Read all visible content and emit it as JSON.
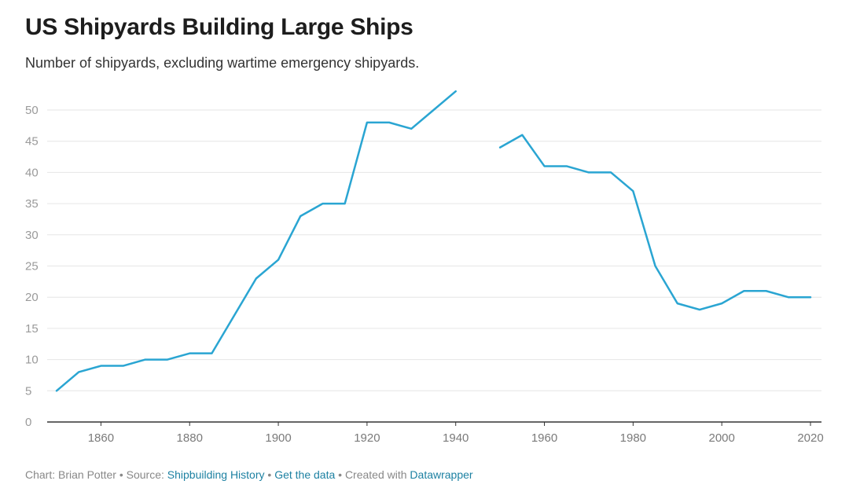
{
  "title": "US Shipyards Building Large Ships",
  "subtitle": "Number of shipyards, excluding wartime emergency shipyards.",
  "footer": {
    "chart_by": "Chart: Brian Potter",
    "source_prefix": "Source:",
    "source_link": "Shipbuilding History",
    "separator": "•",
    "get_data": "Get the data",
    "created_with": "Created with",
    "datawrapper": "Datawrapper"
  },
  "colors": {
    "line": "#2aa5d2",
    "grid": "#e6e6e6",
    "axis": "#333333",
    "tick_text": "#9a9a9a",
    "link": "#1d81a2"
  },
  "chart_data": {
    "type": "line",
    "title": "US Shipyards Building Large Ships",
    "subtitle": "Number of shipyards, excluding wartime emergency shipyards.",
    "xlabel": "",
    "ylabel": "",
    "xlim": [
      1848,
      2022
    ],
    "ylim": [
      0,
      53
    ],
    "grid": true,
    "x_ticks": [
      1860,
      1880,
      1900,
      1920,
      1940,
      1960,
      1980,
      2000,
      2020
    ],
    "y_ticks": [
      0,
      5,
      10,
      15,
      20,
      25,
      30,
      35,
      40,
      45,
      50
    ],
    "series": [
      {
        "segments": [
          [
            [
              1850,
              5
            ],
            [
              1855,
              8
            ],
            [
              1860,
              9
            ],
            [
              1865,
              9
            ],
            [
              1870,
              10
            ],
            [
              1875,
              10
            ],
            [
              1880,
              11
            ],
            [
              1885,
              11
            ],
            [
              1890,
              17
            ],
            [
              1895,
              23
            ],
            [
              1900,
              26
            ],
            [
              1905,
              33
            ],
            [
              1910,
              35
            ],
            [
              1915,
              35
            ],
            [
              1920,
              48
            ],
            [
              1925,
              48
            ],
            [
              1930,
              47
            ],
            [
              1935,
              50
            ],
            [
              1940,
              53
            ]
          ],
          [
            [
              1950,
              44
            ],
            [
              1955,
              46
            ],
            [
              1960,
              41
            ],
            [
              1965,
              41
            ],
            [
              1970,
              40
            ],
            [
              1975,
              40
            ],
            [
              1980,
              37
            ],
            [
              1985,
              25
            ],
            [
              1990,
              19
            ],
            [
              1995,
              18
            ],
            [
              2000,
              19
            ],
            [
              2005,
              21
            ],
            [
              2010,
              21
            ],
            [
              2015,
              20
            ],
            [
              2020,
              20
            ]
          ]
        ]
      }
    ]
  }
}
